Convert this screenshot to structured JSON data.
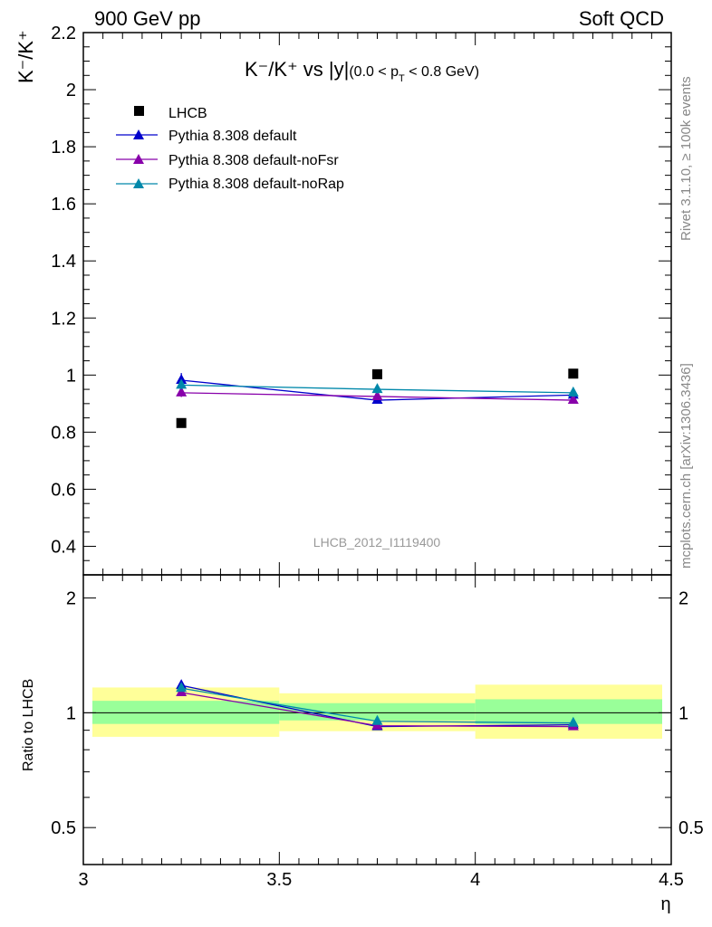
{
  "header": {
    "left": "900 GeV pp",
    "right": "Soft QCD"
  },
  "side_labels": {
    "rivet": "Rivet 3.1.10, ≥ 100k events",
    "mcplots": "mcplots.cern.ch [arXiv:1306.3436]"
  },
  "watermark": "LHCB_2012_I1119400",
  "colors": {
    "data": "#000000",
    "default": "#0000cc",
    "noFsr": "#8800aa",
    "noRap": "#0088aa",
    "band_outer": "#ffff99",
    "band_inner": "#99ff99"
  },
  "chart_data": [
    {
      "type": "line",
      "panel": "main",
      "title": {
        "main": "K⁻/K⁺ vs |y|",
        "sub": "(0.0 < p",
        "sub_index": "T",
        "sub_tail": " < 0.8 GeV)"
      },
      "ylabel": "K⁻/K⁺",
      "xlim": [
        3.0,
        4.5
      ],
      "ylim": [
        0.3,
        2.2
      ],
      "yticks": [
        "0.4",
        "0.6",
        "0.8",
        "1",
        "1.2",
        "1.4",
        "1.6",
        "1.8",
        "2",
        "2.2"
      ],
      "x": [
        3.25,
        3.75,
        4.25
      ],
      "series": [
        {
          "name": "LHCB",
          "marker": "square",
          "values": [
            0.832,
            1.003,
            1.005
          ]
        },
        {
          "name": "Pythia 8.308 default",
          "marker": "triangle",
          "values": [
            0.982,
            0.912,
            0.93
          ],
          "yerr": [
            0.025,
            0.012,
            0.012
          ]
        },
        {
          "name": "Pythia 8.308 default-noFsr",
          "marker": "triangle",
          "values": [
            0.938,
            0.925,
            0.912
          ],
          "yerr": [
            0.015,
            0.012,
            0.012
          ]
        },
        {
          "name": "Pythia 8.308 default-noRap",
          "marker": "triangle",
          "values": [
            0.965,
            0.95,
            0.938
          ],
          "yerr": [
            0.015,
            0.015,
            0.015
          ]
        }
      ],
      "legend": "top-left"
    },
    {
      "type": "line",
      "panel": "ratio",
      "ylabel": "Ratio to LHCB",
      "xlabel": "η",
      "xlim": [
        3.0,
        4.5
      ],
      "ylim": [
        0.4,
        2.3
      ],
      "yscale": "log",
      "yticks": [
        "0.5",
        "1",
        "2"
      ],
      "xticks": [
        "3",
        "3.5",
        "4",
        "4.5"
      ],
      "bins": [
        [
          3.0,
          3.5
        ],
        [
          3.5,
          4.0
        ],
        [
          4.0,
          4.5
        ]
      ],
      "band_outer": [
        [
          0.865,
          1.165
        ],
        [
          0.895,
          1.125
        ],
        [
          0.855,
          1.185
        ]
      ],
      "band_inner": [
        [
          0.935,
          1.075
        ],
        [
          0.955,
          1.06
        ],
        [
          0.935,
          1.085
        ]
      ],
      "x": [
        3.25,
        3.75,
        4.25
      ],
      "series": [
        {
          "name": "Pythia 8.308 default",
          "values": [
            1.18,
            0.92,
            0.93
          ]
        },
        {
          "name": "Pythia 8.308 default-noFsr",
          "values": [
            1.13,
            0.925,
            0.92
          ]
        },
        {
          "name": "Pythia 8.308 default-noRap",
          "values": [
            1.16,
            0.95,
            0.94
          ]
        }
      ]
    }
  ]
}
